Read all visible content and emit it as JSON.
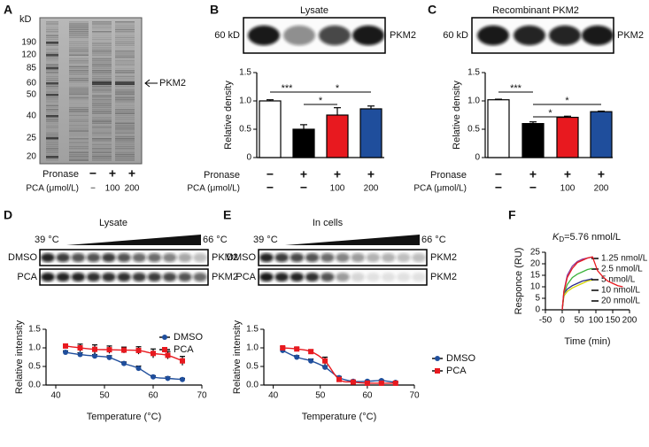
{
  "panel_labels": [
    "A",
    "B",
    "C",
    "D",
    "E",
    "F"
  ],
  "panel_a": {
    "unit": "kD",
    "ladder": [
      190,
      120,
      85,
      60,
      50,
      40,
      25,
      20
    ],
    "arrow_label": "PKM2",
    "treatments": [
      {
        "label": "Pronase",
        "marks": [
          "−",
          "+",
          "+"
        ]
      },
      {
        "label": "PCA (μmol/L)",
        "marks": [
          "−",
          "100",
          "200"
        ]
      }
    ]
  },
  "blots": {
    "b": {
      "title": "Lysate",
      "size": "60 kD",
      "protein": "PKM2"
    },
    "c": {
      "title": "Recombinant PKM2",
      "size": "60 kD",
      "protein": "PKM2"
    },
    "d": {
      "title": "Lysate",
      "start": "39 °C",
      "end": "66 °C",
      "rows": [
        "DMSO",
        "PCA"
      ],
      "proteins": [
        "PKM2",
        "PKM2"
      ]
    },
    "e": {
      "title": "In cells",
      "start": "39 °C",
      "end": "66 °C",
      "rows": [
        "DMSO",
        "PCA"
      ],
      "proteins": [
        "PKM2",
        "PKM2"
      ]
    }
  },
  "chart_data": [
    {
      "type": "bar",
      "ylabel": "Relative density",
      "values": [
        1.0,
        0.5,
        0.75,
        0.86
      ],
      "errors": [
        0.02,
        0.08,
        0.13,
        0.05
      ],
      "colors": [
        "#ffffff",
        "#000000",
        "#e8191f",
        "#1f4e9c"
      ],
      "ylim": [
        0,
        1.5
      ],
      "yticks": [
        0,
        0.5,
        {
          "value": 1,
          "label": "1.0"
        },
        1.5
      ],
      "significance": [
        {
          "label": "***",
          "from": 0,
          "to": 1
        },
        {
          "label": "*",
          "from": 1,
          "to": 3
        },
        {
          "label": "*",
          "from": 1,
          "to": 2
        }
      ],
      "treatments": [
        {
          "label": "Pronase",
          "marks": [
            "−",
            "+",
            "+",
            "+"
          ]
        },
        {
          "label": "PCA (μmol/L)",
          "marks": [
            "−",
            "−",
            "100",
            "200"
          ]
        }
      ]
    },
    {
      "type": "bar",
      "ylabel": "Relative density",
      "values": [
        1.02,
        0.6,
        0.71,
        0.81
      ],
      "errors": [
        0.01,
        0.03,
        0.02,
        0.01
      ],
      "colors": [
        "#ffffff",
        "#000000",
        "#e8191f",
        "#1f4e9c"
      ],
      "ylim": [
        0,
        1.5
      ],
      "yticks": [
        0,
        0.5,
        {
          "value": 1,
          "label": "1.0"
        },
        1.5
      ],
      "significance": [
        {
          "label": "***",
          "from": 0,
          "to": 1
        },
        {
          "label": "*",
          "from": 1,
          "to": 3
        },
        {
          "label": "*",
          "from": 1,
          "to": 2
        }
      ],
      "treatments": [
        {
          "label": "Pronase",
          "marks": [
            "−",
            "+",
            "+",
            "+"
          ]
        },
        {
          "label": "PCA (μmol/L)",
          "marks": [
            "−",
            "−",
            "100",
            "200"
          ]
        }
      ]
    },
    {
      "type": "scatter",
      "xlabel": "Temperature (°C)",
      "ylabel": "Relative intensity",
      "x": [
        42,
        45,
        48,
        51,
        54,
        57,
        60,
        63,
        66
      ],
      "series": [
        {
          "name": "DMSO",
          "color": "#1f4e9c",
          "marker": "circle",
          "values": [
            0.88,
            0.82,
            0.78,
            0.74,
            0.58,
            0.45,
            0.22,
            0.18,
            0.15
          ],
          "errors": [
            0.04,
            0.05,
            0.04,
            0.05,
            0.04,
            0.06,
            0.03,
            0.04,
            0.03
          ]
        },
        {
          "name": "PCA",
          "color": "#e8191f",
          "marker": "square",
          "values": [
            1.05,
            1.0,
            0.96,
            0.95,
            0.94,
            0.93,
            0.85,
            0.8,
            0.65
          ],
          "errors": [
            0.05,
            0.1,
            0.12,
            0.1,
            0.08,
            0.1,
            0.12,
            0.1,
            0.12
          ]
        }
      ],
      "xlim": [
        38,
        70
      ],
      "xticks": [
        40,
        50,
        60,
        70
      ],
      "ylim": [
        0,
        1.5
      ],
      "yticks": [
        {
          "value": 0,
          "label": "0.0"
        },
        0.5,
        {
          "value": 1,
          "label": "1.0"
        },
        1.5
      ]
    },
    {
      "type": "scatter",
      "xlabel": "Temperature (°C)",
      "ylabel": "Relative intensity",
      "x": [
        42,
        45,
        48,
        51,
        54,
        57,
        60,
        63,
        66
      ],
      "series": [
        {
          "name": "DMSO",
          "color": "#1f4e9c",
          "marker": "circle",
          "values": [
            0.93,
            0.75,
            0.65,
            0.48,
            0.2,
            0.1,
            0.1,
            0.12,
            0.07
          ],
          "errors": [
            0.04,
            0.04,
            0.05,
            0.04,
            0.03,
            0.02,
            0.02,
            0.02,
            0.02
          ]
        },
        {
          "name": "PCA",
          "color": "#e8191f",
          "marker": "square",
          "values": [
            1.0,
            0.97,
            0.9,
            0.65,
            0.15,
            0.08,
            0.05,
            0.05,
            0.05
          ],
          "errors": [
            0.03,
            0.04,
            0.05,
            0.1,
            0.04,
            0.02,
            0.02,
            0.02,
            0.02
          ]
        }
      ],
      "xlim": [
        38,
        70
      ],
      "xticks": [
        40,
        50,
        60,
        70
      ],
      "ylim": [
        0,
        1.5
      ],
      "yticks": [
        {
          "value": 0,
          "label": "0.0"
        },
        0.5,
        {
          "value": 1,
          "label": "1.0"
        },
        1.5
      ]
    },
    {
      "type": "line",
      "annotation": {
        "k": "K",
        "sub": "D",
        "text": "=5.76 nmol/L"
      },
      "xlabel": "Time (min)",
      "ylabel": "Responce (RU)",
      "x": [
        0,
        5,
        15,
        30,
        45,
        60,
        75,
        90,
        105,
        120,
        135,
        150,
        165,
        180
      ],
      "series": [
        {
          "name": "1.25 nmol/L",
          "color": "#d4d400",
          "values": [
            0,
            6,
            8,
            9.5,
            10.5,
            11.5,
            12.5,
            13,
            null,
            null,
            null,
            null,
            null,
            null
          ]
        },
        {
          "name": "2.5 nmol/L",
          "color": "#2a2a8a",
          "values": [
            0,
            7,
            9,
            10.5,
            11.5,
            12.5,
            13,
            13.5,
            null,
            null,
            null,
            null,
            null,
            null
          ]
        },
        {
          "name": "5 nmol/L",
          "color": "#3cb33c",
          "values": [
            0,
            7,
            11,
            14,
            15.5,
            16.5,
            17.5,
            18,
            null,
            null,
            null,
            null,
            null,
            null
          ]
        },
        {
          "name": "10 nmol/L",
          "color": "#8b3a9c",
          "values": [
            0,
            8,
            15,
            19,
            21,
            22,
            22.5,
            23,
            null,
            null,
            null,
            null,
            null,
            null
          ]
        },
        {
          "name": "20 nmol/L",
          "color": "#e8191f",
          "values": [
            0,
            8,
            14,
            18,
            20.5,
            21.5,
            22.5,
            23,
            17,
            14.5,
            12.5,
            11.5,
            10.5,
            10
          ]
        }
      ],
      "xlim": [
        -50,
        200
      ],
      "xticks": [
        -50,
        0,
        50,
        100,
        150,
        200
      ],
      "ylim": [
        0,
        25
      ],
      "yticks": [
        0,
        5,
        10,
        15,
        20,
        25
      ]
    }
  ]
}
